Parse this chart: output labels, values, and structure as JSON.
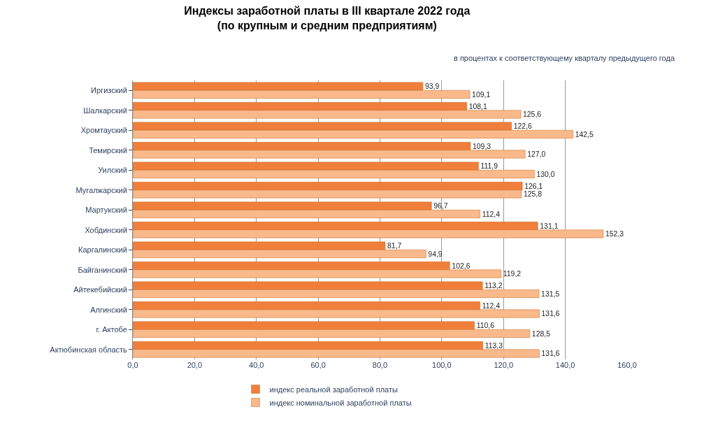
{
  "chart_data": {
    "type": "bar",
    "orientation": "horizontal",
    "title": "Индексы заработной платы в III квартале 2022 года\n(по крупным и средним предприятиям)",
    "subtitle": "в процентах к соответствующему кварталу предыдущего года",
    "categories": [
      "Иргизский",
      "Шалкарский",
      "Хромтауский",
      "Темирский",
      "Уилский",
      "Мугалжарский",
      "Мартукский",
      "Хобдинский",
      "Каргалинский",
      "Байганинский",
      "Айтекебийский",
      "Алгинский",
      "г. Актобе",
      "Актюбинская область"
    ],
    "series": [
      {
        "name": "индекс реальной заработной платы",
        "color": "#f07f3c",
        "values": [
          93.9,
          108.1,
          122.6,
          109.3,
          111.9,
          126.1,
          96.7,
          131.1,
          81.7,
          102.6,
          113.2,
          112.4,
          110.6,
          113.3
        ],
        "value_labels": [
          "93,9",
          "108,1",
          "122,6",
          "109,3",
          "111,9",
          "126,1",
          "96,7",
          "131,1",
          "81,7",
          "102,6",
          "113,2",
          "112,4",
          "110,6",
          "113,3"
        ]
      },
      {
        "name": "индекс номинальной заработной платы",
        "color": "#f9b98a",
        "values": [
          109.1,
          125.6,
          142.5,
          127.0,
          130.0,
          125.8,
          112.4,
          152.3,
          94.9,
          119.2,
          131.5,
          131.6,
          128.5,
          131.6
        ],
        "value_labels": [
          "109,1",
          "125,6",
          "142,5",
          "127,0",
          "130,0",
          "125,8",
          "112,4",
          "152,3",
          "94,9",
          "119,2",
          "131,5",
          "131,6",
          "128,5",
          "131,6"
        ]
      }
    ],
    "xlim": [
      0,
      160
    ],
    "xticks": [
      {
        "value": 0,
        "label": "0,0"
      },
      {
        "value": 20,
        "label": "20,0"
      },
      {
        "value": 40,
        "label": "40,0"
      },
      {
        "value": 60,
        "label": "60,0"
      },
      {
        "value": 80,
        "label": "80,0"
      },
      {
        "value": 100,
        "label": "100,0"
      },
      {
        "value": 120,
        "label": "120,0"
      },
      {
        "value": 140,
        "label": "140,0"
      },
      {
        "value": 160,
        "label": "160,0"
      }
    ],
    "grid": "x",
    "legend": "bottom"
  }
}
